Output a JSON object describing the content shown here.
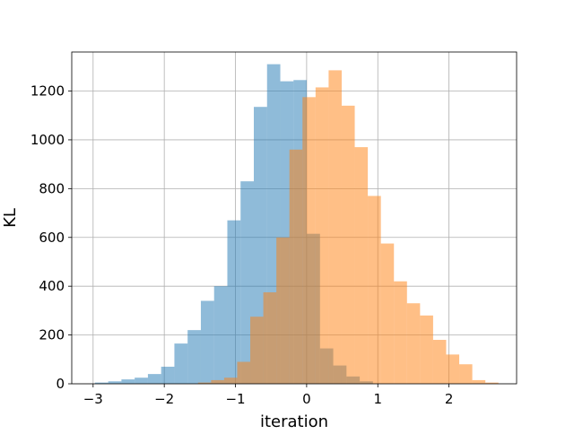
{
  "chart_data": {
    "type": "bar",
    "subtype": "overlapping-histogram",
    "title": "",
    "xlabel": "iteration",
    "ylabel": "KL",
    "xlim": [
      -3.3,
      2.95
    ],
    "ylim": [
      0,
      1360
    ],
    "xticks": [
      -3,
      -2,
      -1,
      0,
      1,
      2
    ],
    "xtick_labels": [
      "−3",
      "−2",
      "−1",
      "0",
      "1",
      "2"
    ],
    "yticks": [
      0,
      200,
      400,
      600,
      800,
      1000,
      1200
    ],
    "ytick_labels": [
      "0",
      "200",
      "400",
      "600",
      "800",
      "1000",
      "1200"
    ],
    "grid": true,
    "legend": "none",
    "series": [
      {
        "color": "#1f77b4",
        "alpha": 0.5,
        "bin_width": 0.186,
        "bin_starts": [
          -2.974,
          -2.788,
          -2.602,
          -2.416,
          -2.23,
          -2.044,
          -1.858,
          -1.672,
          -1.486,
          -1.3,
          -1.114,
          -0.928,
          -0.742,
          -0.556,
          -0.37,
          -0.184,
          0.002,
          0.188,
          0.374,
          0.56,
          0.746
        ],
        "values": [
          5,
          10,
          18,
          25,
          40,
          70,
          165,
          220,
          340,
          400,
          670,
          830,
          1135,
          1310,
          1240,
          1245,
          615,
          145,
          75,
          30,
          10
        ]
      },
      {
        "color": "#ff7f0e",
        "alpha": 0.5,
        "bin_width": 0.1835,
        "bin_starts": [
          -1.526,
          -1.3425,
          -1.159,
          -0.9755,
          -0.792,
          -0.6085,
          -0.425,
          -0.2415,
          -0.058,
          0.1255,
          0.309,
          0.4925,
          0.676,
          0.8595,
          1.043,
          1.2265,
          1.41,
          1.5935,
          1.777,
          1.9605,
          2.144,
          2.3275,
          2.511
        ],
        "values": [
          5,
          15,
          25,
          90,
          275,
          375,
          600,
          960,
          1175,
          1215,
          1285,
          1140,
          970,
          770,
          575,
          420,
          330,
          280,
          180,
          120,
          80,
          15,
          5
        ]
      }
    ]
  }
}
